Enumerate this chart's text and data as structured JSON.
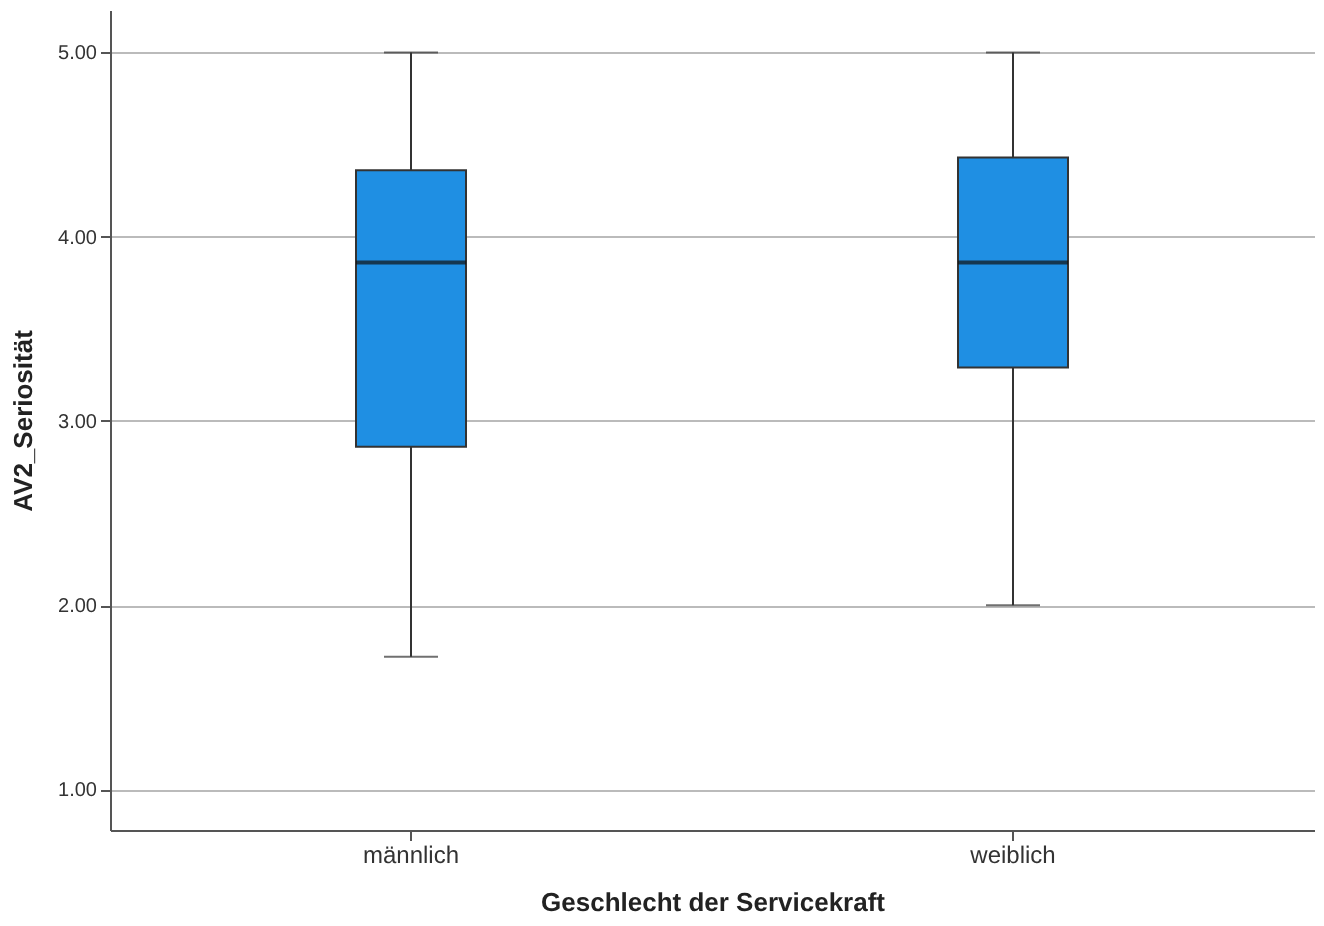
{
  "chart_data": {
    "type": "box",
    "xlabel": "Geschlecht der Servicekraft",
    "ylabel": "AV2_Seriosität",
    "categories": [
      "männlich",
      "weiblich"
    ],
    "series": [
      {
        "color": "#1f8fe3",
        "boxes": [
          {
            "low": 1.72,
            "q1": 2.86,
            "median": 3.86,
            "q3": 4.36,
            "high": 5.0
          },
          {
            "low": 2.0,
            "q1": 3.29,
            "median": 3.86,
            "q3": 4.43,
            "high": 5.0
          }
        ]
      }
    ],
    "ylim": [
      0.78,
      5.23
    ],
    "yticks": [
      {
        "value": 1,
        "label": "1.00"
      },
      {
        "value": 2,
        "label": "2.00"
      },
      {
        "value": 3,
        "label": "3.00"
      },
      {
        "value": 4,
        "label": "4.00"
      },
      {
        "value": 5,
        "label": "5.00"
      }
    ],
    "grid": "y"
  }
}
